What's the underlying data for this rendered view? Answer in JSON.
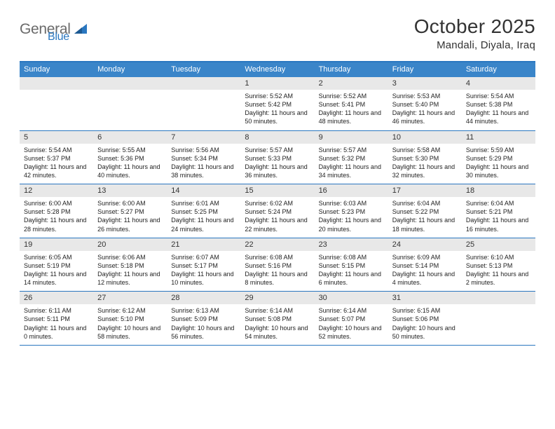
{
  "logo": {
    "text_general": "General",
    "text_blue": "Blue"
  },
  "header": {
    "title": "October 2025",
    "location": "Mandali, Diyala, Iraq"
  },
  "colors": {
    "header_bg": "#3a85c9",
    "border": "#2a77c0",
    "daynum_bg": "#e8e8e8",
    "text": "#333333",
    "logo_gray": "#6a6a6a",
    "logo_blue": "#2a77c0"
  },
  "day_names": [
    "Sunday",
    "Monday",
    "Tuesday",
    "Wednesday",
    "Thursday",
    "Friday",
    "Saturday"
  ],
  "weeks": [
    {
      "nums": [
        "",
        "",
        "",
        "1",
        "2",
        "3",
        "4"
      ],
      "details": [
        "",
        "",
        "",
        "Sunrise: 5:52 AM\nSunset: 5:42 PM\nDaylight: 11 hours and 50 minutes.",
        "Sunrise: 5:52 AM\nSunset: 5:41 PM\nDaylight: 11 hours and 48 minutes.",
        "Sunrise: 5:53 AM\nSunset: 5:40 PM\nDaylight: 11 hours and 46 minutes.",
        "Sunrise: 5:54 AM\nSunset: 5:38 PM\nDaylight: 11 hours and 44 minutes."
      ]
    },
    {
      "nums": [
        "5",
        "6",
        "7",
        "8",
        "9",
        "10",
        "11"
      ],
      "details": [
        "Sunrise: 5:54 AM\nSunset: 5:37 PM\nDaylight: 11 hours and 42 minutes.",
        "Sunrise: 5:55 AM\nSunset: 5:36 PM\nDaylight: 11 hours and 40 minutes.",
        "Sunrise: 5:56 AM\nSunset: 5:34 PM\nDaylight: 11 hours and 38 minutes.",
        "Sunrise: 5:57 AM\nSunset: 5:33 PM\nDaylight: 11 hours and 36 minutes.",
        "Sunrise: 5:57 AM\nSunset: 5:32 PM\nDaylight: 11 hours and 34 minutes.",
        "Sunrise: 5:58 AM\nSunset: 5:30 PM\nDaylight: 11 hours and 32 minutes.",
        "Sunrise: 5:59 AM\nSunset: 5:29 PM\nDaylight: 11 hours and 30 minutes."
      ]
    },
    {
      "nums": [
        "12",
        "13",
        "14",
        "15",
        "16",
        "17",
        "18"
      ],
      "details": [
        "Sunrise: 6:00 AM\nSunset: 5:28 PM\nDaylight: 11 hours and 28 minutes.",
        "Sunrise: 6:00 AM\nSunset: 5:27 PM\nDaylight: 11 hours and 26 minutes.",
        "Sunrise: 6:01 AM\nSunset: 5:25 PM\nDaylight: 11 hours and 24 minutes.",
        "Sunrise: 6:02 AM\nSunset: 5:24 PM\nDaylight: 11 hours and 22 minutes.",
        "Sunrise: 6:03 AM\nSunset: 5:23 PM\nDaylight: 11 hours and 20 minutes.",
        "Sunrise: 6:04 AM\nSunset: 5:22 PM\nDaylight: 11 hours and 18 minutes.",
        "Sunrise: 6:04 AM\nSunset: 5:21 PM\nDaylight: 11 hours and 16 minutes."
      ]
    },
    {
      "nums": [
        "19",
        "20",
        "21",
        "22",
        "23",
        "24",
        "25"
      ],
      "details": [
        "Sunrise: 6:05 AM\nSunset: 5:19 PM\nDaylight: 11 hours and 14 minutes.",
        "Sunrise: 6:06 AM\nSunset: 5:18 PM\nDaylight: 11 hours and 12 minutes.",
        "Sunrise: 6:07 AM\nSunset: 5:17 PM\nDaylight: 11 hours and 10 minutes.",
        "Sunrise: 6:08 AM\nSunset: 5:16 PM\nDaylight: 11 hours and 8 minutes.",
        "Sunrise: 6:08 AM\nSunset: 5:15 PM\nDaylight: 11 hours and 6 minutes.",
        "Sunrise: 6:09 AM\nSunset: 5:14 PM\nDaylight: 11 hours and 4 minutes.",
        "Sunrise: 6:10 AM\nSunset: 5:13 PM\nDaylight: 11 hours and 2 minutes."
      ]
    },
    {
      "nums": [
        "26",
        "27",
        "28",
        "29",
        "30",
        "31",
        ""
      ],
      "details": [
        "Sunrise: 6:11 AM\nSunset: 5:11 PM\nDaylight: 11 hours and 0 minutes.",
        "Sunrise: 6:12 AM\nSunset: 5:10 PM\nDaylight: 10 hours and 58 minutes.",
        "Sunrise: 6:13 AM\nSunset: 5:09 PM\nDaylight: 10 hours and 56 minutes.",
        "Sunrise: 6:14 AM\nSunset: 5:08 PM\nDaylight: 10 hours and 54 minutes.",
        "Sunrise: 6:14 AM\nSunset: 5:07 PM\nDaylight: 10 hours and 52 minutes.",
        "Sunrise: 6:15 AM\nSunset: 5:06 PM\nDaylight: 10 hours and 50 minutes.",
        ""
      ]
    }
  ]
}
